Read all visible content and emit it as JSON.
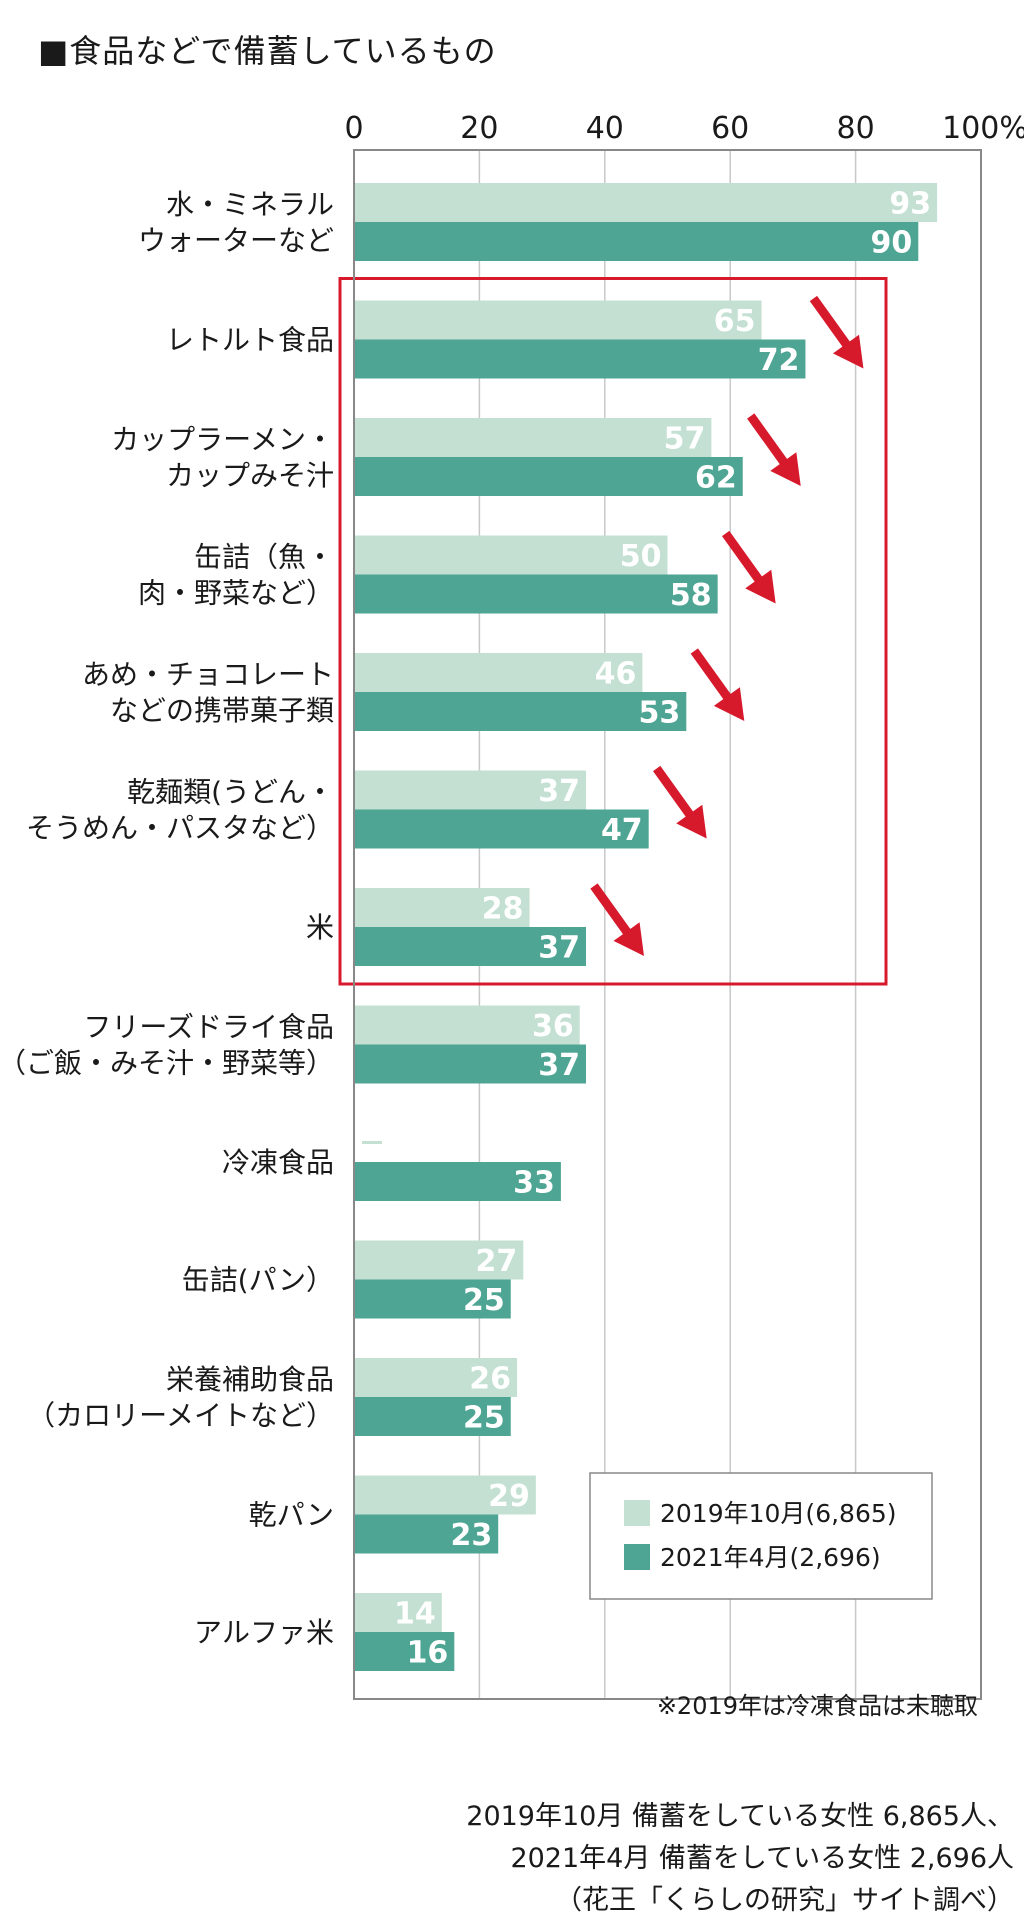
{
  "title": "■食品などで備蓄しているもの",
  "footnote": "※2019年は冷凍食品は未聴取",
  "source_lines": [
    "2019年10月 備蓄をしている女性 6,865人、",
    "2021年4月 備蓄をしている女性 2,696人",
    "（花王「くらしの研究」サイト調べ）"
  ],
  "colors": {
    "series_2019": "#c3e0d3",
    "series_2021": "#4ea593",
    "highlight_box": "#d7192c",
    "arrow": "#d7192c",
    "axis": "#888888",
    "grid": "#c8c8c8"
  },
  "chart_data": {
    "type": "bar",
    "orientation": "horizontal",
    "title": "■食品などで備蓄しているもの",
    "x_ticks": [
      "0",
      "20",
      "40",
      "60",
      "80",
      "100%"
    ],
    "xlim": [
      0,
      100
    ],
    "grid": true,
    "legend_position": "bottom-right",
    "categories": [
      [
        "水・ミネラル",
        "ウォーターなど"
      ],
      [
        "レトルト食品"
      ],
      [
        "カップラーメン・",
        "カップみそ汁"
      ],
      [
        "缶詰（魚・",
        "肉・野菜など）"
      ],
      [
        "あめ・チョコレート",
        "などの携帯菓子類"
      ],
      [
        "乾麺類(うどん・",
        "そうめん・パスタなど）"
      ],
      [
        "米"
      ],
      [
        "フリーズドライ食品",
        "（ご飯・みそ汁・野菜等）"
      ],
      [
        "冷凍食品"
      ],
      [
        "缶詰(パン）"
      ],
      [
        "栄養補助食品",
        "（カロリーメイトなど）"
      ],
      [
        "乾パン"
      ],
      [
        "アルファ米"
      ]
    ],
    "series": [
      {
        "name": "2019年10月(6,865)",
        "values": [
          93,
          65,
          57,
          50,
          46,
          37,
          28,
          36,
          null,
          27,
          26,
          29,
          14
        ],
        "labels": [
          "93",
          "65",
          "57",
          "50",
          "46",
          "37",
          "28",
          "36",
          "",
          "27",
          "26",
          "29",
          "14"
        ]
      },
      {
        "name": "2021年4月(2,696)",
        "values": [
          90,
          72,
          62,
          58,
          53,
          47,
          37,
          37,
          33,
          25,
          25,
          23,
          16
        ],
        "labels": [
          "90",
          "72",
          "62",
          "58",
          "53",
          "47",
          "37",
          "37",
          "33",
          "25",
          "25",
          "23",
          "16"
        ]
      }
    ],
    "highlighted_categories": [
      1,
      2,
      3,
      4,
      5,
      6
    ]
  }
}
